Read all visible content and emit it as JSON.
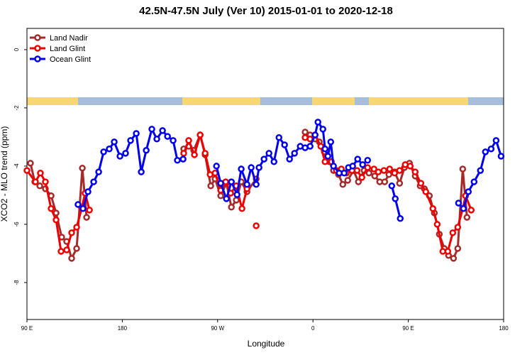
{
  "chart_data": {
    "type": "line",
    "title": "42.5N-47.5N July (Ver 10)   2015-01-01 to 2020-12-18",
    "x_label": "Longitude",
    "y_label": "XCO2 - MLO trend (ppm)",
    "xlim": [
      90,
      540
    ],
    "ylim": [
      -9.27,
      0.73
    ],
    "xticks": [
      {
        "value": 90,
        "label": "90 E"
      },
      {
        "value": 180,
        "label": "180"
      },
      {
        "value": 270,
        "label": "90 W"
      },
      {
        "value": 360,
        "label": "0"
      },
      {
        "value": 450,
        "label": "90 E"
      },
      {
        "value": 540,
        "label": "180"
      }
    ],
    "yticks": [
      0,
      -2,
      -4,
      -6,
      -8
    ],
    "legend": "top-left",
    "series": [
      {
        "name": "Land Nadir",
        "color": "#a52a2a",
        "x": [
          93.3,
          97.4,
          102.1,
          107.4,
          112.8,
          117.5,
          122.8,
          127.5,
          132.2,
          136.9,
          142.3,
          146.3,
          190,
          238.0,
          242.7,
          247.4,
          253.5,
          258.2,
          263.5,
          267.6,
          272.9,
          278.3,
          283.0,
          287.6,
          292.3,
          297.7,
          306.4,
          330,
          352.6,
          357.3,
          362.0,
          366.0,
          370.7,
          375.4,
          379.4,
          384.1,
          388.2,
          392.8,
          398.2,
          402.9,
          408.3,
          412.9,
          418.3,
          423.0,
          427.7,
          431.7,
          437.1,
          441.8,
          446.4,
          451.1,
          456.5,
          461.2,
          465.2,
          469.9,
          474.6,
          479.3,
          484.0,
          488.0,
          492.7,
          496.7,
          501.4,
          505.4
        ],
        "values": [
          -3.9,
          -4.54,
          -4.68,
          -4.78,
          -5.02,
          -5.61,
          -6.44,
          -6.59,
          -7.17,
          -6.83,
          -4.07,
          -5.76,
          null,
          -3.41,
          -3.32,
          -3.46,
          -2.93,
          -3.61,
          -4.68,
          -4.44,
          -5.02,
          -4.59,
          -5.41,
          -5.17,
          -4.54,
          -4.88,
          -4.44,
          null,
          -2.83,
          -2.93,
          -3.07,
          -3.17,
          -3.51,
          -3.85,
          -4.15,
          -4.29,
          -4.63,
          -4.49,
          -4.15,
          -4.54,
          -4.15,
          -4.24,
          -4.34,
          -4.54,
          -4.54,
          -4.29,
          -4.2,
          -4.59,
          -4.05,
          -3.9,
          -4.34,
          -4.68,
          -4.78,
          -5.02,
          -5.61,
          -6.34,
          -6.83,
          -7.07,
          -7.17,
          -6.83,
          -4.1,
          -5.76
        ]
      },
      {
        "name": "Land Glint",
        "color": "#ee0000",
        "x": [
          90.0,
          98.0,
          102.7,
          107.4,
          112.8,
          117.5,
          122.2,
          127.5,
          132.2,
          136.9,
          141.6,
          144.9,
          149.0,
          190,
          238.0,
          242.7,
          248.1,
          253.5,
          258.2,
          262.9,
          267.6,
          272.9,
          277.6,
          282.3,
          287.6,
          293.0,
          297.7,
          302,
          306.4,
          330,
          352.6,
          357.3,
          362.0,
          367.4,
          371.4,
          377.4,
          382.1,
          386.8,
          391.5,
          396.9,
          401.6,
          406.2,
          411.6,
          417.6,
          421.7,
          427.0,
          432.4,
          437.1,
          441.8,
          447.1,
          451.8,
          456.5,
          461.9,
          466.5,
          473.2,
          477.3,
          482.6,
          487.3,
          492.0,
          496.7,
          501.4,
          504.1,
          509.4
        ],
        "values": [
          -4.15,
          -4.54,
          -4.24,
          -4.54,
          -5.46,
          -5.85,
          -6.93,
          -6.88,
          -6.29,
          -6.1,
          -5.46,
          -4.93,
          -5.51,
          null,
          -3.56,
          -3.12,
          -3.61,
          -2.93,
          -3.56,
          -4.29,
          -4.24,
          -4.83,
          -4.54,
          -4.93,
          -4.68,
          -5.46,
          -4.78,
          null,
          -6.05,
          null,
          -3.02,
          -3.07,
          -2.93,
          -3.32,
          -3.85,
          -3.85,
          -4.15,
          -4.1,
          -4.24,
          -4.15,
          -4.15,
          -4.39,
          -4.05,
          -4.1,
          -4.2,
          -4.15,
          -4.1,
          -4.24,
          -4.15,
          -3.95,
          -4.0,
          -4.2,
          -4.59,
          -4.88,
          -5.46,
          -6.0,
          -6.93,
          -6.93,
          -6.29,
          -6.1,
          -5.46,
          -5.02,
          -5.51
        ]
      },
      {
        "name": "Ocean Glint",
        "color": "#0000ee",
        "x": [
          138.2,
          142.9,
          147.6,
          153.0,
          157.7,
          162.4,
          167.7,
          172.4,
          177.8,
          183.1,
          187.8,
          193.2,
          197.9,
          202.6,
          207.9,
          212.6,
          218.0,
          222.7,
          228.0,
          232.0,
          237.4,
          253,
          268.9,
          272.9,
          278.3,
          283.0,
          288.3,
          292.3,
          297.7,
          301.7,
          306.4,
          309.1,
          313.8,
          318.5,
          323.2,
          327.9,
          333.2,
          337.9,
          342.6,
          348.0,
          352.6,
          357.3,
          362.0,
          364.7,
          369.4,
          371.4,
          374.1,
          376.8,
          379.4,
          384.8,
          389.5,
          393.5,
          397.5,
          402.2,
          406.9,
          411.6,
          423,
          434.4,
          437.7,
          442.4,
          470,
          497.4,
          502.1,
          506.7,
          512.1,
          518.1,
          522.8,
          528.2,
          532.9,
          537.6
        ],
        "values": [
          -5.32,
          -5.46,
          -4.88,
          -4.54,
          -4.2,
          -3.51,
          -3.41,
          -3.17,
          -3.66,
          -3.56,
          -3.12,
          -2.88,
          -4.2,
          -3.46,
          -2.73,
          -3.07,
          -2.78,
          -2.98,
          -3.12,
          -3.8,
          -3.76,
          null,
          -4.0,
          -4.59,
          -5.12,
          -4.54,
          -4.98,
          -4.1,
          -4.63,
          -4.05,
          -4.63,
          -4.05,
          -3.76,
          -3.56,
          -3.85,
          -3.02,
          -3.27,
          -3.76,
          -3.56,
          -3.32,
          -3.37,
          -3.32,
          -2.93,
          -2.49,
          -2.73,
          -3.41,
          -3.66,
          -3.17,
          -4.0,
          -4.24,
          -4.24,
          -4.05,
          -4.0,
          -3.76,
          -3.95,
          -3.8,
          null,
          -4.68,
          -5.12,
          -5.8,
          null,
          -5.27,
          -5.46,
          -4.88,
          -4.54,
          -4.15,
          -3.51,
          -3.41,
          -3.12,
          -3.66
        ]
      }
    ]
  }
}
